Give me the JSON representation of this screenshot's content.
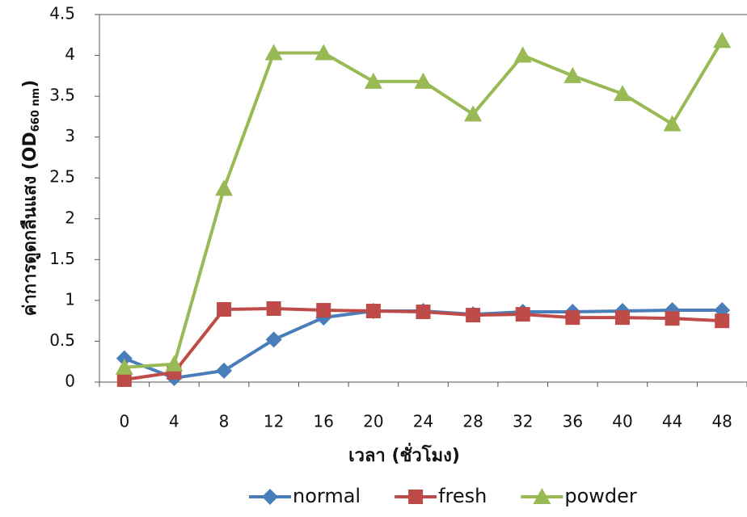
{
  "chart_data": {
    "type": "line",
    "ylabel": "ค่าการดูดกลืนแสง (OD",
    "ylabel_sub": "660 nm",
    "ylabel_end": ")",
    "xlabel": "เวลา (ชั่วโมง)",
    "categories": [
      "0",
      "4",
      "8",
      "12",
      "16",
      "20",
      "24",
      "28",
      "32",
      "36",
      "40",
      "44",
      "48"
    ],
    "series": [
      {
        "name": "normal",
        "color": "#4a7ebb",
        "marker": "diamond",
        "values": [
          0.29,
          0.05,
          0.14,
          0.52,
          0.79,
          0.87,
          0.87,
          0.83,
          0.86,
          0.86,
          0.87,
          0.88,
          0.88
        ]
      },
      {
        "name": "fresh",
        "color": "#be4b48",
        "marker": "square",
        "values": [
          0.03,
          0.12,
          0.89,
          0.9,
          0.88,
          0.87,
          0.86,
          0.82,
          0.83,
          0.79,
          0.79,
          0.78,
          0.75
        ]
      },
      {
        "name": "powder",
        "color": "#98b954",
        "marker": "triangle",
        "values": [
          0.18,
          0.22,
          2.37,
          4.03,
          4.03,
          3.68,
          3.68,
          3.28,
          4.0,
          3.75,
          3.53,
          3.16,
          4.18
        ]
      }
    ],
    "ylim": [
      0,
      4.5
    ],
    "yticks": [
      0,
      0.5,
      1,
      1.5,
      2,
      2.5,
      3,
      3.5,
      4,
      4.5
    ],
    "legend": "bottom"
  }
}
